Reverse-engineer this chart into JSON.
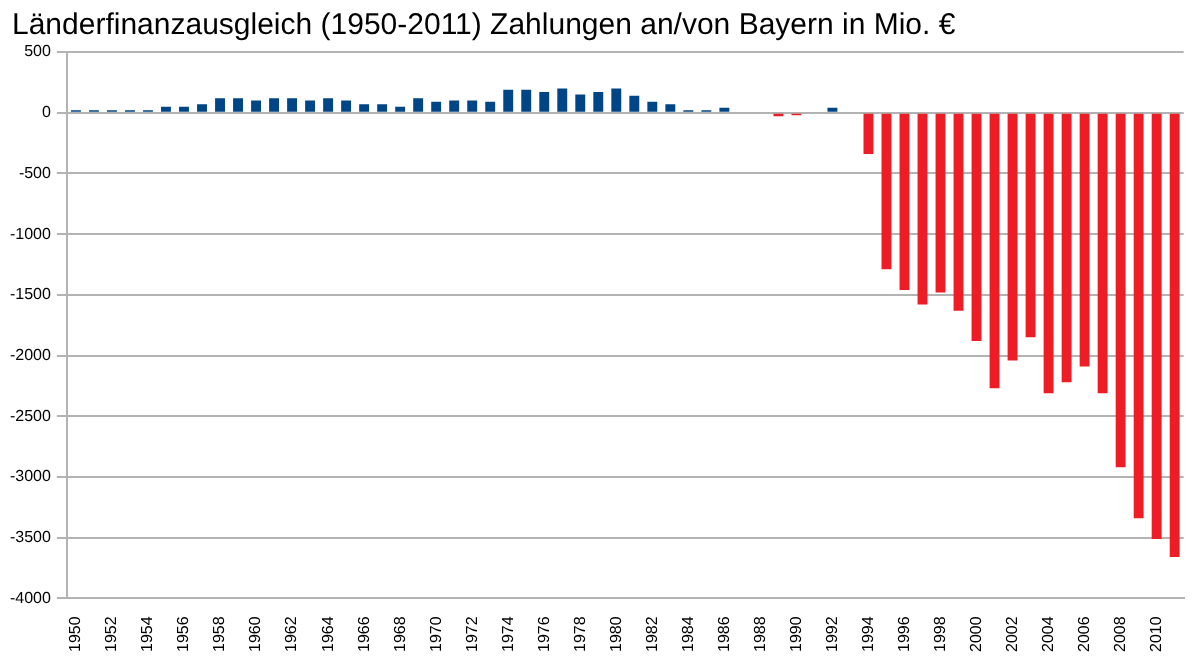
{
  "chart_data": {
    "type": "bar",
    "title": "Länderfinanzausgleich (1950-2011) Zahlungen an/von Bayern in Mio. €",
    "categories": [
      "1950",
      null,
      "1952",
      null,
      "1954",
      null,
      "1956",
      null,
      "1958",
      null,
      "1960",
      null,
      "1962",
      null,
      "1964",
      null,
      "1966",
      null,
      "1968",
      null,
      "1970",
      null,
      "1972",
      null,
      "1974",
      null,
      "1976",
      null,
      "1978",
      null,
      "1980",
      null,
      "1982",
      null,
      "1984",
      null,
      "1986",
      null,
      "1988",
      null,
      "1990",
      null,
      "1992",
      null,
      "1994",
      null,
      "1996",
      null,
      "1998",
      null,
      "2000",
      null,
      "2002",
      null,
      "2004",
      null,
      "2006",
      null,
      "2008",
      null,
      "2010",
      null
    ],
    "values": [
      20,
      20,
      20,
      20,
      20,
      50,
      50,
      70,
      120,
      120,
      100,
      120,
      120,
      100,
      120,
      100,
      70,
      70,
      50,
      120,
      90,
      100,
      100,
      90,
      190,
      190,
      170,
      200,
      150,
      170,
      200,
      140,
      90,
      70,
      20,
      20,
      40,
      0,
      0,
      -30,
      -20,
      0,
      40,
      0,
      -340,
      -1290,
      -1460,
      -1580,
      -1480,
      -1630,
      -1880,
      -2270,
      -2040,
      -1850,
      -2310,
      -2220,
      -2090,
      -2310,
      -2920,
      -3340,
      -3510,
      -3660
    ],
    "colors": [
      "#004586",
      "#004586",
      "#004586",
      "#004586",
      "#004586",
      "#004586",
      "#004586",
      "#004586",
      "#004586",
      "#004586",
      "#004586",
      "#004586",
      "#004586",
      "#004586",
      "#004586",
      "#004586",
      "#004586",
      "#004586",
      "#004586",
      "#004586",
      "#004586",
      "#004586",
      "#004586",
      "#004586",
      "#004586",
      "#004586",
      "#004586",
      "#004586",
      "#004586",
      "#004586",
      "#004586",
      "#004586",
      "#004586",
      "#004586",
      "#004586",
      "#004586",
      "#004586",
      "#004586",
      "#004586",
      "#ee1c25",
      "#ee1c25",
      "#004586",
      "#004586",
      "#004586",
      "#ee1c25",
      "#ee1c25",
      "#ee1c25",
      "#ee1c25",
      "#ee1c25",
      "#ee1c25",
      "#ee1c25",
      "#ee1c25",
      "#ee1c25",
      "#ee1c25",
      "#ee1c25",
      "#ee1c25",
      "#ee1c25",
      "#ee1c25",
      "#ee1c25",
      "#ee1c25",
      "#ee1c25",
      "#ee1c25"
    ],
    "ylim": [
      -4000,
      500
    ],
    "yticks": [
      -4000,
      -3500,
      -3000,
      -2500,
      -2000,
      -1500,
      -1000,
      -500,
      0,
      500
    ],
    "grid": "y",
    "legend": false
  }
}
